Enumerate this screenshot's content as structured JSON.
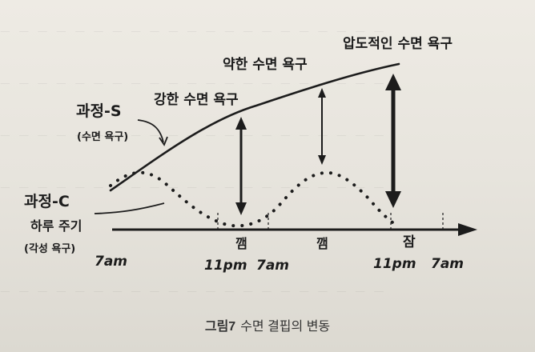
{
  "labels": {
    "process_s": "과정-S",
    "process_s_sub": "(수면 욕구)",
    "process_c": "과정-C",
    "process_c_sub1": "하루 주기",
    "process_c_sub2": "(각성 욕구)",
    "strong": "강한 수면 욕구",
    "weak": "약한 수면 욕구",
    "overwhelming": "압도적인 수면 욕구",
    "wake": "깸",
    "wake2": "깸",
    "sleep": "잠"
  },
  "times": [
    "7am",
    "11pm",
    "7am",
    "11pm",
    "7am"
  ],
  "caption": {
    "number": "그림7",
    "text": "수면 결핍의 변동"
  },
  "colors": {
    "ink": "#1c1c1c",
    "paper": "#e9e6df"
  }
}
